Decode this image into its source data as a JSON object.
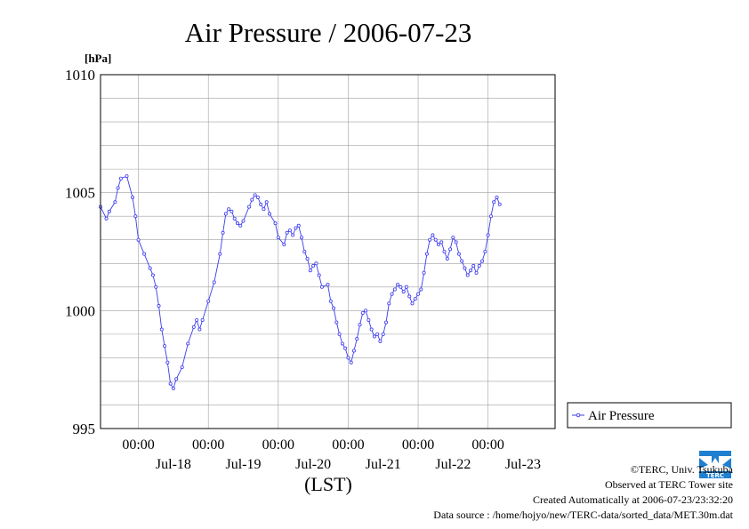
{
  "chart_data": {
    "type": "line",
    "title": "Air Pressure / 2006-07-23",
    "yunit": "[hPa]",
    "xlabel": "(LST)",
    "xlim": [
      "2006-07-17 11:00",
      "2006-07-23 23:00"
    ],
    "ylim": [
      995,
      1010
    ],
    "yticks": [
      "1010",
      "1005",
      "1000",
      "995"
    ],
    "ytick_values": [
      1010,
      1005,
      1000,
      995
    ],
    "y_minor_step": 1,
    "x_major_ticks": [
      {
        "x": "2006-07-18 00:00",
        "time": "00:00",
        "date": ""
      },
      {
        "x": "2006-07-19 00:00",
        "time": "00:00",
        "date": ""
      },
      {
        "x": "2006-07-20 00:00",
        "time": "00:00",
        "date": ""
      },
      {
        "x": "2006-07-21 00:00",
        "time": "00:00",
        "date": ""
      },
      {
        "x": "2006-07-22 00:00",
        "time": "00:00",
        "date": ""
      },
      {
        "x": "2006-07-23 00:00",
        "time": "00:00",
        "date": ""
      }
    ],
    "x_date_labels": [
      {
        "x": "2006-07-18 12:00",
        "label": "Jul-18"
      },
      {
        "x": "2006-07-19 12:00",
        "label": "Jul-19"
      },
      {
        "x": "2006-07-20 12:00",
        "label": "Jul-20"
      },
      {
        "x": "2006-07-21 12:00",
        "label": "Jul-21"
      },
      {
        "x": "2006-07-22 12:00",
        "label": "Jul-22"
      },
      {
        "x": "2006-07-23 12:00",
        "label": "Jul-23"
      }
    ],
    "grid": true,
    "legend_position": "right-bottom",
    "series": [
      {
        "name": "Air Pressure",
        "color": "#3b3bf0",
        "marker": "circle",
        "points": [
          [
            "2006-07-17 11:00",
            1004.4
          ],
          [
            "2006-07-17 13:00",
            1003.9
          ],
          [
            "2006-07-17 14:00",
            1004.2
          ],
          [
            "2006-07-17 16:00",
            1004.6
          ],
          [
            "2006-07-17 17:00",
            1005.2
          ],
          [
            "2006-07-17 18:00",
            1005.6
          ],
          [
            "2006-07-17 20:00",
            1005.7
          ],
          [
            "2006-07-17 22:00",
            1004.8
          ],
          [
            "2006-07-17 23:00",
            1004.0
          ],
          [
            "2006-07-18 00:00",
            1003.0
          ],
          [
            "2006-07-18 02:00",
            1002.4
          ],
          [
            "2006-07-18 04:00",
            1001.8
          ],
          [
            "2006-07-18 05:00",
            1001.5
          ],
          [
            "2006-07-18 06:00",
            1001.0
          ],
          [
            "2006-07-18 07:00",
            1000.2
          ],
          [
            "2006-07-18 08:00",
            999.2
          ],
          [
            "2006-07-18 09:00",
            998.5
          ],
          [
            "2006-07-18 10:00",
            997.8
          ],
          [
            "2006-07-18 11:00",
            996.9
          ],
          [
            "2006-07-18 12:00",
            996.7
          ],
          [
            "2006-07-18 13:00",
            997.1
          ],
          [
            "2006-07-18 15:00",
            997.6
          ],
          [
            "2006-07-18 17:00",
            998.6
          ],
          [
            "2006-07-18 19:00",
            999.3
          ],
          [
            "2006-07-18 20:00",
            999.6
          ],
          [
            "2006-07-18 21:00",
            999.2
          ],
          [
            "2006-07-18 22:00",
            999.6
          ],
          [
            "2006-07-19 00:00",
            1000.4
          ],
          [
            "2006-07-19 02:00",
            1001.2
          ],
          [
            "2006-07-19 04:00",
            1002.4
          ],
          [
            "2006-07-19 05:00",
            1003.3
          ],
          [
            "2006-07-19 06:00",
            1004.1
          ],
          [
            "2006-07-19 07:00",
            1004.3
          ],
          [
            "2006-07-19 08:00",
            1004.2
          ],
          [
            "2006-07-19 09:00",
            1003.9
          ],
          [
            "2006-07-19 10:00",
            1003.7
          ],
          [
            "2006-07-19 11:00",
            1003.6
          ],
          [
            "2006-07-19 12:00",
            1003.8
          ],
          [
            "2006-07-19 14:00",
            1004.4
          ],
          [
            "2006-07-19 15:00",
            1004.7
          ],
          [
            "2006-07-19 16:00",
            1004.9
          ],
          [
            "2006-07-19 17:00",
            1004.8
          ],
          [
            "2006-07-19 18:00",
            1004.5
          ],
          [
            "2006-07-19 19:00",
            1004.3
          ],
          [
            "2006-07-19 20:00",
            1004.6
          ],
          [
            "2006-07-19 21:00",
            1004.1
          ],
          [
            "2006-07-19 23:00",
            1003.7
          ],
          [
            "2006-07-20 00:00",
            1003.1
          ],
          [
            "2006-07-20 02:00",
            1002.8
          ],
          [
            "2006-07-20 03:00",
            1003.3
          ],
          [
            "2006-07-20 04:00",
            1003.4
          ],
          [
            "2006-07-20 05:00",
            1003.2
          ],
          [
            "2006-07-20 06:00",
            1003.5
          ],
          [
            "2006-07-20 07:00",
            1003.6
          ],
          [
            "2006-07-20 08:00",
            1003.1
          ],
          [
            "2006-07-20 09:00",
            1002.5
          ],
          [
            "2006-07-20 10:00",
            1002.2
          ],
          [
            "2006-07-20 11:00",
            1001.7
          ],
          [
            "2006-07-20 12:00",
            1001.9
          ],
          [
            "2006-07-20 13:00",
            1002.0
          ],
          [
            "2006-07-20 14:00",
            1001.5
          ],
          [
            "2006-07-20 15:00",
            1001.0
          ],
          [
            "2006-07-20 17:00",
            1001.1
          ],
          [
            "2006-07-20 18:00",
            1000.4
          ],
          [
            "2006-07-20 19:00",
            1000.1
          ],
          [
            "2006-07-20 20:00",
            999.5
          ],
          [
            "2006-07-20 21:00",
            999.0
          ],
          [
            "2006-07-20 22:00",
            998.6
          ],
          [
            "2006-07-20 23:00",
            998.4
          ],
          [
            "2006-07-21 00:00",
            998.0
          ],
          [
            "2006-07-21 01:00",
            997.8
          ],
          [
            "2006-07-21 02:00",
            998.3
          ],
          [
            "2006-07-21 03:00",
            998.8
          ],
          [
            "2006-07-21 04:00",
            999.4
          ],
          [
            "2006-07-21 05:00",
            999.9
          ],
          [
            "2006-07-21 06:00",
            1000.0
          ],
          [
            "2006-07-21 07:00",
            999.6
          ],
          [
            "2006-07-21 08:00",
            999.2
          ],
          [
            "2006-07-21 09:00",
            998.9
          ],
          [
            "2006-07-21 10:00",
            999.0
          ],
          [
            "2006-07-21 11:00",
            998.7
          ],
          [
            "2006-07-21 12:00",
            999.0
          ],
          [
            "2006-07-21 13:00",
            999.5
          ],
          [
            "2006-07-21 14:00",
            1000.3
          ],
          [
            "2006-07-21 15:00",
            1000.7
          ],
          [
            "2006-07-21 16:00",
            1000.9
          ],
          [
            "2006-07-21 17:00",
            1001.1
          ],
          [
            "2006-07-21 18:00",
            1001.0
          ],
          [
            "2006-07-21 19:00",
            1000.8
          ],
          [
            "2006-07-21 20:00",
            1001.0
          ],
          [
            "2006-07-21 21:00",
            1000.6
          ],
          [
            "2006-07-21 22:00",
            1000.3
          ],
          [
            "2006-07-21 23:00",
            1000.5
          ],
          [
            "2006-07-22 00:00",
            1000.7
          ],
          [
            "2006-07-22 01:00",
            1000.9
          ],
          [
            "2006-07-22 02:00",
            1001.6
          ],
          [
            "2006-07-22 03:00",
            1002.4
          ],
          [
            "2006-07-22 04:00",
            1003.0
          ],
          [
            "2006-07-22 05:00",
            1003.2
          ],
          [
            "2006-07-22 06:00",
            1003.0
          ],
          [
            "2006-07-22 07:00",
            1002.8
          ],
          [
            "2006-07-22 08:00",
            1002.9
          ],
          [
            "2006-07-22 09:00",
            1002.5
          ],
          [
            "2006-07-22 10:00",
            1002.2
          ],
          [
            "2006-07-22 11:00",
            1002.6
          ],
          [
            "2006-07-22 12:00",
            1003.1
          ],
          [
            "2006-07-22 13:00",
            1002.9
          ],
          [
            "2006-07-22 14:00",
            1002.4
          ],
          [
            "2006-07-22 15:00",
            1002.1
          ],
          [
            "2006-07-22 16:00",
            1001.8
          ],
          [
            "2006-07-22 17:00",
            1001.5
          ],
          [
            "2006-07-22 18:00",
            1001.7
          ],
          [
            "2006-07-22 19:00",
            1001.9
          ],
          [
            "2006-07-22 20:00",
            1001.6
          ],
          [
            "2006-07-22 21:00",
            1001.9
          ],
          [
            "2006-07-22 22:00",
            1002.1
          ],
          [
            "2006-07-22 23:00",
            1002.5
          ],
          [
            "2006-07-23 00:00",
            1003.2
          ],
          [
            "2006-07-23 01:00",
            1004.0
          ],
          [
            "2006-07-23 02:00",
            1004.6
          ],
          [
            "2006-07-23 03:00",
            1004.8
          ],
          [
            "2006-07-23 04:00",
            1004.5
          ]
        ]
      }
    ]
  },
  "credits": {
    "copyright": "©TERC, Univ. Tsukuba",
    "observed": "Observed at TERC Tower site",
    "created": "Created Automatically at 2006-07-23/23:32:20",
    "source": "Data source : /home/hojyo/new/TERC-data/sorted_data/MET.30m.dat"
  },
  "logo": {
    "name": "terc-logo",
    "text": "TERC",
    "color": "#1f7fd0"
  }
}
